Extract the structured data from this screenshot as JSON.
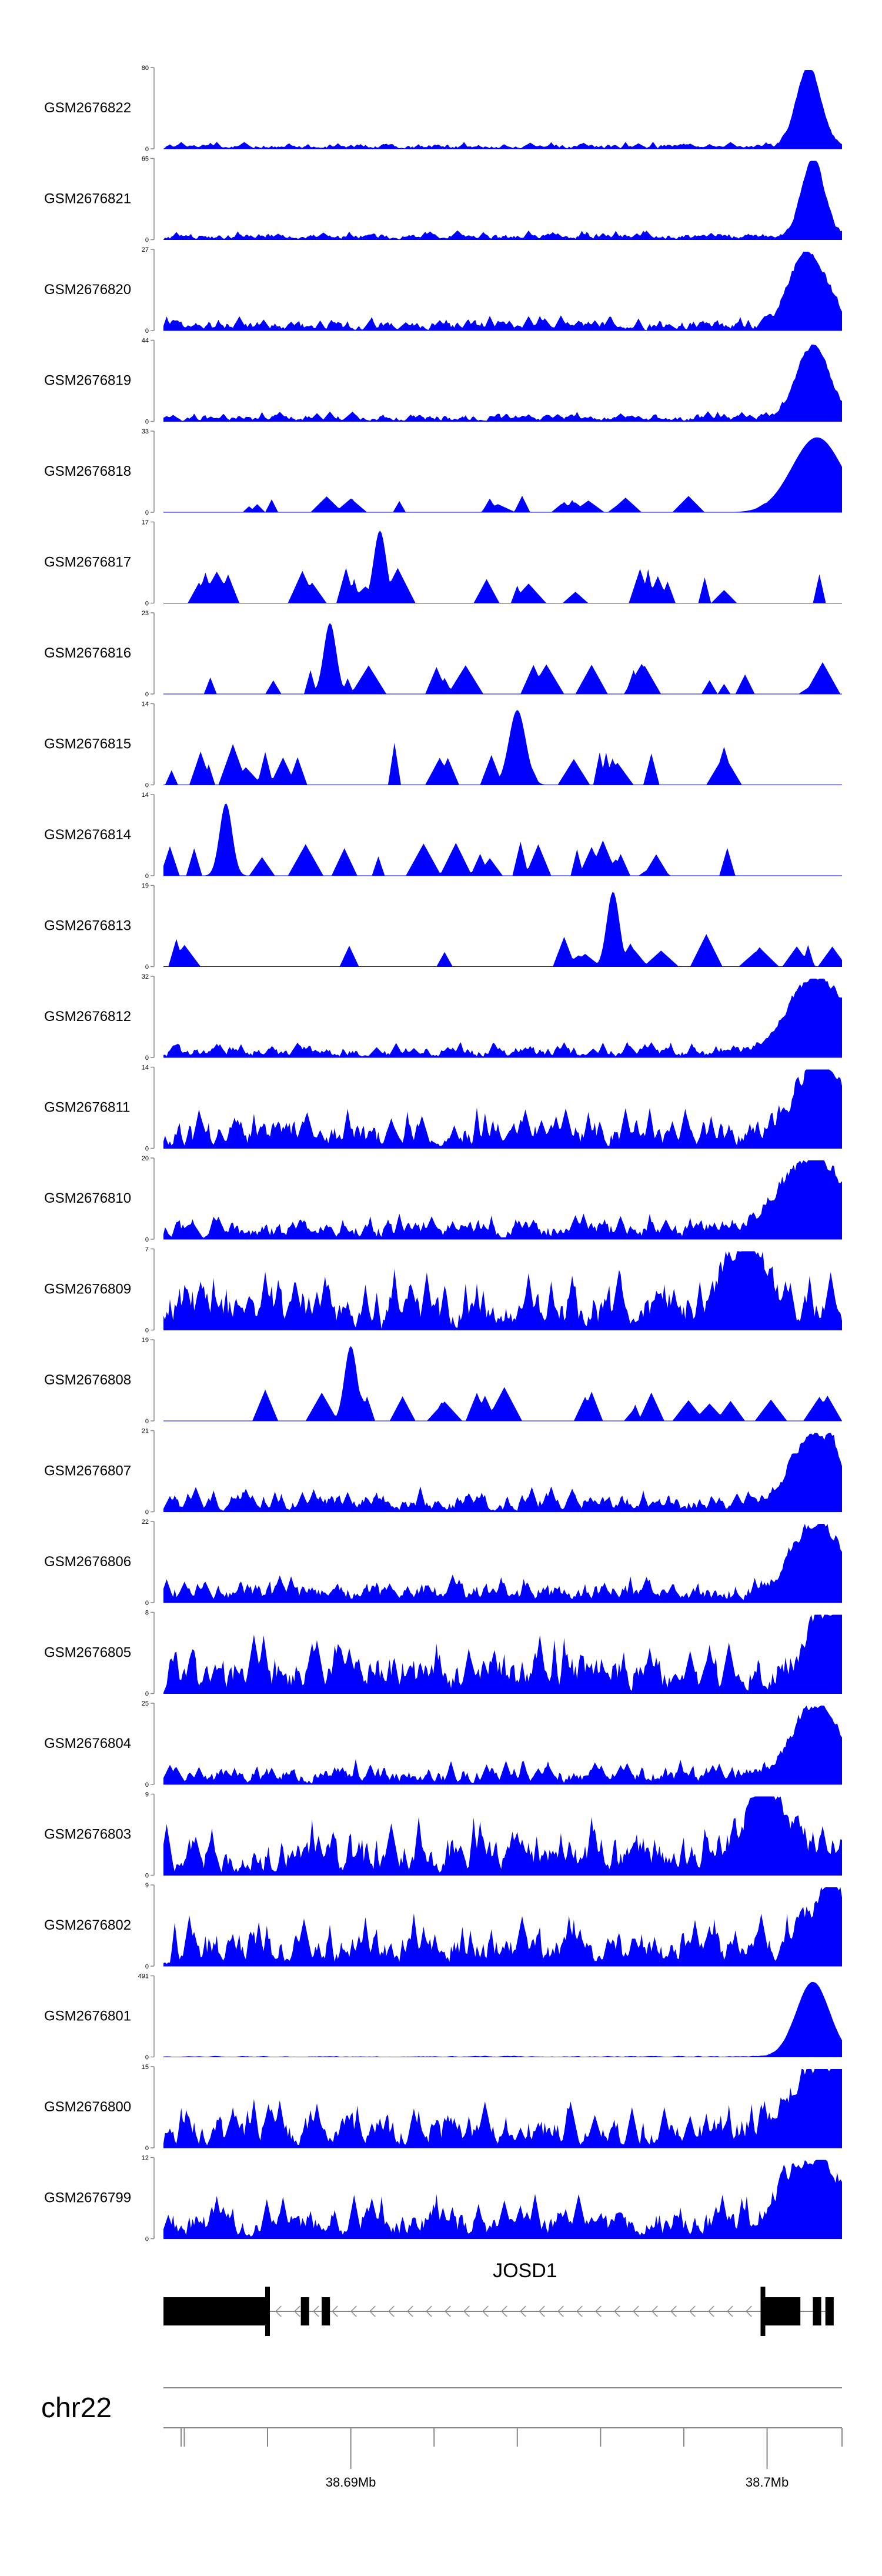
{
  "chart_data": {
    "type": "area",
    "fill_color": "#0000ff",
    "region": {
      "chromosome": "chr22",
      "start_mb": 38.6855,
      "end_mb": 38.7018
    },
    "tracks": [
      {
        "name": "GSM2676822",
        "ymax": 80,
        "ymin": 0,
        "peak_mb": 38.701,
        "peak": 1.0,
        "bg": 0.06,
        "peak_width": 0.0003,
        "style": "dense",
        "seed": 11
      },
      {
        "name": "GSM2676821",
        "ymax": 65,
        "ymin": 0,
        "peak_mb": 38.7011,
        "peak": 1.0,
        "bg": 0.08,
        "peak_width": 0.00028,
        "style": "dense",
        "seed": 12
      },
      {
        "name": "GSM2676820",
        "ymax": 27,
        "ymin": 0,
        "peak_mb": 38.701,
        "peak": 0.95,
        "bg": 0.13,
        "peak_width": 0.00045,
        "style": "dense",
        "seed": 13
      },
      {
        "name": "GSM2676819",
        "ymax": 44,
        "ymin": 0,
        "peak_mb": 38.7011,
        "peak": 0.92,
        "bg": 0.09,
        "peak_width": 0.0004,
        "style": "dense",
        "seed": 14
      },
      {
        "name": "GSM2676818",
        "ymax": 33,
        "ymin": 0,
        "peak_mb": 38.7012,
        "peak": 0.95,
        "bg": 0.22,
        "peak_width": 0.0006,
        "style": "sparse",
        "seed": 15
      },
      {
        "name": "GSM2676817",
        "ymax": 17,
        "ymin": 0,
        "peak_mb": 38.6907,
        "peak": 0.92,
        "bg": 0.45,
        "peak_width": 0.00015,
        "style": "sparse",
        "seed": 16
      },
      {
        "name": "GSM2676816",
        "ymax": 23,
        "ymin": 0,
        "peak_mb": 38.6895,
        "peak": 0.9,
        "bg": 0.42,
        "peak_width": 0.00015,
        "style": "sparse",
        "seed": 17
      },
      {
        "name": "GSM2676815",
        "ymax": 14,
        "ymin": 0,
        "peak_mb": 38.694,
        "peak": 0.95,
        "bg": 0.55,
        "peak_width": 0.0002,
        "style": "sparse",
        "seed": 18
      },
      {
        "name": "GSM2676814",
        "ymax": 14,
        "ymin": 0,
        "peak_mb": 38.687,
        "peak": 0.92,
        "bg": 0.45,
        "peak_width": 0.00015,
        "style": "sparse",
        "seed": 19
      },
      {
        "name": "GSM2676813",
        "ymax": 19,
        "ymin": 0,
        "peak_mb": 38.6963,
        "peak": 0.95,
        "bg": 0.42,
        "peak_width": 0.00015,
        "style": "sparse",
        "seed": 20
      },
      {
        "name": "GSM2676812",
        "ymax": 32,
        "ymin": 0,
        "peak_mb": 38.7012,
        "peak": 0.95,
        "bg": 0.14,
        "peak_width": 0.0007,
        "style": "dense",
        "seed": 21
      },
      {
        "name": "GSM2676811",
        "ymax": 14,
        "ymin": 0,
        "peak_mb": 38.7013,
        "peak": 0.95,
        "bg": 0.35,
        "peak_width": 0.0006,
        "style": "dense",
        "seed": 22
      },
      {
        "name": "GSM2676810",
        "ymax": 20,
        "ymin": 0,
        "peak_mb": 38.7011,
        "peak": 0.92,
        "bg": 0.22,
        "peak_width": 0.0008,
        "style": "dense",
        "seed": 23
      },
      {
        "name": "GSM2676809",
        "ymax": 7,
        "ymin": 0,
        "peak_mb": 38.6995,
        "peak": 0.92,
        "bg": 0.55,
        "peak_width": 0.0005,
        "style": "dense",
        "seed": 24
      },
      {
        "name": "GSM2676808",
        "ymax": 19,
        "ymin": 0,
        "peak_mb": 38.69,
        "peak": 0.95,
        "bg": 0.45,
        "peak_width": 0.00015,
        "style": "sparse",
        "seed": 25
      },
      {
        "name": "GSM2676807",
        "ymax": 21,
        "ymin": 0,
        "peak_mb": 38.7012,
        "peak": 0.92,
        "bg": 0.22,
        "peak_width": 0.0006,
        "style": "dense",
        "seed": 26
      },
      {
        "name": "GSM2676806",
        "ymax": 22,
        "ymin": 0,
        "peak_mb": 38.7012,
        "peak": 0.92,
        "bg": 0.25,
        "peak_width": 0.0006,
        "style": "dense",
        "seed": 27
      },
      {
        "name": "GSM2676805",
        "ymax": 8,
        "ymin": 0,
        "peak_mb": 38.7015,
        "peak": 0.92,
        "bg": 0.5,
        "peak_width": 0.0005,
        "style": "dense",
        "seed": 28
      },
      {
        "name": "GSM2676804",
        "ymax": 25,
        "ymin": 0,
        "peak_mb": 38.7012,
        "peak": 0.92,
        "bg": 0.22,
        "peak_width": 0.0006,
        "style": "dense",
        "seed": 29
      },
      {
        "name": "GSM2676803",
        "ymax": 9,
        "ymin": 0,
        "peak_mb": 38.7,
        "peak": 0.9,
        "bg": 0.5,
        "peak_width": 0.0005,
        "style": "dense",
        "seed": 30
      },
      {
        "name": "GSM2676802",
        "ymax": 9,
        "ymin": 0,
        "peak_mb": 38.7015,
        "peak": 0.95,
        "bg": 0.45,
        "peak_width": 0.0004,
        "style": "dense",
        "seed": 31
      },
      {
        "name": "GSM2676801",
        "ymax": 491,
        "ymin": 0,
        "peak_mb": 38.7011,
        "peak": 0.95,
        "bg": 0.01,
        "peak_width": 0.0004,
        "style": "dense",
        "seed": 32
      },
      {
        "name": "GSM2676800",
        "ymax": 15,
        "ymin": 0,
        "peak_mb": 38.7015,
        "peak": 0.92,
        "bg": 0.42,
        "peak_width": 0.0009,
        "style": "dense",
        "seed": 33
      },
      {
        "name": "GSM2676799",
        "ymax": 12,
        "ymin": 0,
        "peak_mb": 38.7011,
        "peak": 0.92,
        "bg": 0.38,
        "peak_width": 0.0007,
        "style": "dense",
        "seed": 34
      }
    ],
    "gene": {
      "name": "JOSD1",
      "strand": "-",
      "start_mb": 38.6855,
      "end_mb": 38.7016,
      "exons_mb": [
        [
          38.6855,
          38.688
        ],
        [
          38.6888,
          38.689
        ],
        [
          38.6893,
          38.6895
        ],
        [
          38.6999,
          38.7008
        ],
        [
          38.7011,
          38.7013
        ],
        [
          38.7014,
          38.7016
        ]
      ]
    },
    "axis": {
      "chromosome_label": "chr22",
      "tick_labels": [
        {
          "mb": 38.69,
          "label": "38.69Mb"
        },
        {
          "mb": 38.7,
          "label": "38.7Mb"
        }
      ],
      "minor_ticks_mb": [
        38.686,
        38.688,
        38.692,
        38.694,
        38.696,
        38.698,
        38.7018
      ]
    }
  }
}
